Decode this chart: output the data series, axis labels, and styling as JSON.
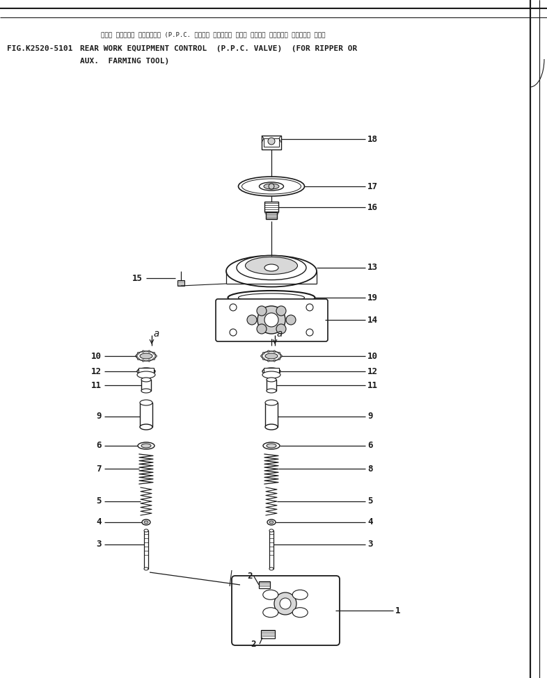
{
  "fig_number": "FIG.K2520-5101",
  "title_japanese": "リヤー サギヨウキ コントロール (P.P.C. バルブ） （リッパー マタハ ノウコウ サギヨウキ ソウチャク ヨウ）",
  "title_line1": "REAR WORK EQUIPMENT CONTROL  (P.P.C. VALVE)  (FOR RIPPER OR",
  "title_line2": "AUX.  FARMING TOOL)",
  "bg_color": "#ffffff",
  "line_color": "#1a1a1a",
  "font_color": "#1a1a1a"
}
